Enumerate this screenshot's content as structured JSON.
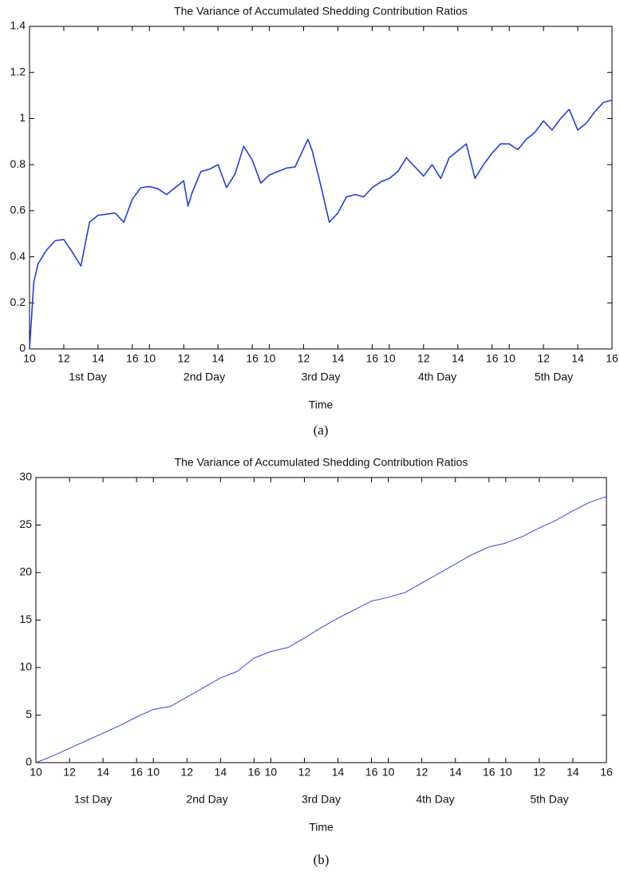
{
  "chart_data": [
    {
      "type": "line",
      "title": "The Variance of Accumulated Shedding Contribution Ratios",
      "xlabel": "Time",
      "caption": "(a)",
      "color": "#1f3fe0",
      "day_labels": [
        "1st Day",
        "2nd Day",
        "3rd Day",
        "4th Day",
        "5th Day"
      ],
      "x": [
        0,
        0.25,
        0.5,
        1,
        1.5,
        2,
        2.5,
        3,
        3.5,
        4,
        4.5,
        5,
        5.5,
        6,
        6.5,
        7,
        7.5,
        8,
        8.5,
        9,
        9.25,
        9.5,
        10,
        10.5,
        11,
        11.5,
        12,
        12.5,
        13,
        13.5,
        14,
        14.5,
        15,
        15.5,
        16,
        16.25,
        16.5,
        17,
        17.5,
        18,
        18.5,
        19,
        19.5,
        20,
        20.5,
        21,
        21.5,
        22,
        22.5,
        23,
        23.5,
        24,
        24.5,
        25,
        25.5,
        26,
        26.5,
        27,
        27.5,
        28,
        28.5,
        29,
        29.5,
        30,
        30.5,
        31,
        31.5,
        32,
        32.5,
        33,
        33.5,
        34
      ],
      "values": [
        0,
        0.29,
        0.37,
        0.43,
        0.47,
        0.475,
        0.42,
        0.36,
        0.55,
        0.58,
        0.585,
        0.59,
        0.55,
        0.65,
        0.7,
        0.705,
        0.695,
        0.67,
        0.7,
        0.73,
        0.62,
        0.68,
        0.77,
        0.78,
        0.8,
        0.7,
        0.76,
        0.88,
        0.82,
        0.72,
        0.755,
        0.77,
        0.785,
        0.79,
        0.87,
        0.91,
        0.86,
        0.71,
        0.55,
        0.59,
        0.66,
        0.67,
        0.66,
        0.7,
        0.725,
        0.74,
        0.77,
        0.83,
        0.79,
        0.75,
        0.8,
        0.74,
        0.83,
        0.86,
        0.89,
        0.74,
        0.8,
        0.85,
        0.89,
        0.89,
        0.865,
        0.91,
        0.94,
        0.99,
        0.95,
        1.0,
        1.04,
        0.95,
        0.98,
        1.03,
        1.07,
        1.08
      ],
      "xlim": [
        0,
        34
      ],
      "ylim": [
        0,
        1.4
      ],
      "xticks": [
        {
          "value": 0,
          "label": "10"
        },
        {
          "value": 2,
          "label": "12"
        },
        {
          "value": 4,
          "label": "14"
        },
        {
          "value": 6,
          "label": "16"
        },
        {
          "value": 7,
          "label": "10"
        },
        {
          "value": 9,
          "label": "12"
        },
        {
          "value": 11,
          "label": "14"
        },
        {
          "value": 13,
          "label": "16"
        },
        {
          "value": 14,
          "label": "10"
        },
        {
          "value": 16,
          "label": "12"
        },
        {
          "value": 18,
          "label": "14"
        },
        {
          "value": 20,
          "label": "16"
        },
        {
          "value": 21,
          "label": "10"
        },
        {
          "value": 23,
          "label": "12"
        },
        {
          "value": 25,
          "label": "14"
        },
        {
          "value": 27,
          "label": "16"
        },
        {
          "value": 28,
          "label": "10"
        },
        {
          "value": 30,
          "label": "12"
        },
        {
          "value": 32,
          "label": "14"
        },
        {
          "value": 34,
          "label": "16"
        }
      ],
      "yticks": [
        0,
        0.2,
        0.4,
        0.6,
        0.8,
        1,
        1.2,
        1.4
      ]
    },
    {
      "type": "line",
      "title": "The Variance of Accumulated Shedding Contribution Ratios",
      "xlabel": "Time",
      "caption": "(b)",
      "color": "#3346e6",
      "day_labels": [
        "1st Day",
        "2nd Day",
        "3rd Day",
        "4th Day",
        "5th Day"
      ],
      "x": [
        0,
        1,
        2,
        3,
        4,
        5,
        6,
        7,
        8,
        9,
        10,
        11,
        12,
        13,
        14,
        15,
        16,
        17,
        18,
        19,
        20,
        21,
        22,
        23,
        24,
        25,
        26,
        27,
        28,
        29,
        30,
        31,
        32,
        33,
        34
      ],
      "values": [
        0,
        0.7,
        1.5,
        2.3,
        3.1,
        3.9,
        4.8,
        5.6,
        5.9,
        6.9,
        7.9,
        8.9,
        9.6,
        11.0,
        11.7,
        12.1,
        13.1,
        14.2,
        15.2,
        16.1,
        17.0,
        17.4,
        17.9,
        18.9,
        19.9,
        20.9,
        21.9,
        22.7,
        23.1,
        23.8,
        24.7,
        25.5,
        26.5,
        27.4,
        28.0
      ],
      "xlim": [
        0,
        34
      ],
      "ylim": [
        0,
        30
      ],
      "xticks": [
        {
          "value": 0,
          "label": "10"
        },
        {
          "value": 2,
          "label": "12"
        },
        {
          "value": 4,
          "label": "14"
        },
        {
          "value": 6,
          "label": "16"
        },
        {
          "value": 7,
          "label": "10"
        },
        {
          "value": 9,
          "label": "12"
        },
        {
          "value": 11,
          "label": "14"
        },
        {
          "value": 13,
          "label": "16"
        },
        {
          "value": 14,
          "label": "10"
        },
        {
          "value": 16,
          "label": "12"
        },
        {
          "value": 18,
          "label": "14"
        },
        {
          "value": 20,
          "label": "16"
        },
        {
          "value": 21,
          "label": "10"
        },
        {
          "value": 23,
          "label": "12"
        },
        {
          "value": 25,
          "label": "14"
        },
        {
          "value": 27,
          "label": "16"
        },
        {
          "value": 28,
          "label": "10"
        },
        {
          "value": 30,
          "label": "12"
        },
        {
          "value": 32,
          "label": "14"
        },
        {
          "value": 34,
          "label": "16"
        }
      ],
      "yticks": [
        0,
        5,
        10,
        15,
        20,
        25,
        30
      ]
    }
  ]
}
